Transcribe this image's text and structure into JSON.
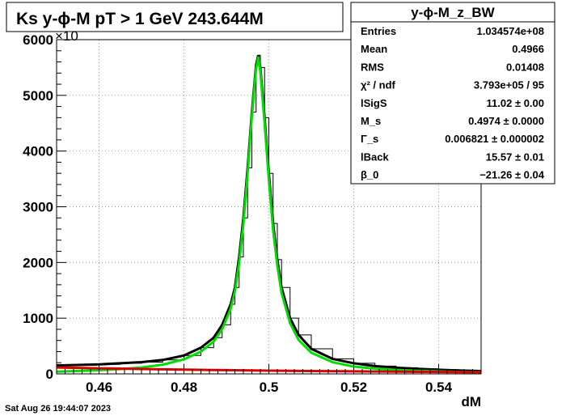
{
  "title": "Ks y-ϕ-M pT > 1 GeV  243.644M",
  "footer_date": "Sat Aug 26 19:44:07 2023",
  "stats_box": {
    "name": "y-ϕ-M_z_BW",
    "rows": [
      {
        "label": "Entries",
        "value": "1.034574e+08"
      },
      {
        "label": "Mean",
        "value": "0.4966"
      },
      {
        "label": "RMS",
        "value": "0.01408"
      },
      {
        "label": "χ² / ndf",
        "value": "3.793e+05 / 95"
      },
      {
        "label": "lSigS",
        "value": "11.02 ± 0.00"
      },
      {
        "label": "M_s",
        "value": "0.4974 ± 0.0000"
      },
      {
        "label": "Γ_s",
        "value": "0.006821 ± 0.000002"
      },
      {
        "label": "lBack",
        "value": "15.57 ± 0.01"
      },
      {
        "label": "β_0",
        "value": "−21.26 ± 0.04"
      }
    ]
  },
  "chart_data": {
    "type": "line",
    "title": "Ks y-ϕ-M pT > 1 GeV  243.644M",
    "xlabel": "dM",
    "ylabel": "",
    "y_multiplier_label": "×10",
    "xlim": [
      0.45,
      0.55
    ],
    "ylim": [
      0,
      6000
    ],
    "grid": true,
    "x_ticks": [
      0.46,
      0.48,
      0.5,
      0.52,
      0.54
    ],
    "x_tick_labels": [
      "0.46",
      "0.48",
      "0.5",
      "0.52",
      "0.54"
    ],
    "y_ticks": [
      0,
      1000,
      2000,
      3000,
      4000,
      5000,
      6000
    ],
    "y_tick_labels": [
      "0",
      "1000",
      "2000",
      "3000",
      "4000",
      "5000",
      "6000"
    ],
    "series": [
      {
        "role": "histogram",
        "color": "#000000",
        "x": [
          0.45,
          0.455,
          0.46,
          0.465,
          0.47,
          0.475,
          0.48,
          0.484,
          0.487,
          0.489,
          0.491,
          0.492,
          0.493,
          0.494,
          0.495,
          0.496,
          0.497,
          0.4975,
          0.498,
          0.499,
          0.5,
          0.501,
          0.502,
          0.503,
          0.505,
          0.507,
          0.51,
          0.515,
          0.52,
          0.525,
          0.53,
          0.535,
          0.54,
          0.545,
          0.55
        ],
        "y": [
          150,
          160,
          170,
          190,
          210,
          250,
          330,
          470,
          650,
          880,
          1250,
          1550,
          2100,
          2800,
          3700,
          4700,
          5550,
          5720,
          5500,
          4600,
          3600,
          2700,
          2050,
          1550,
          1000,
          700,
          450,
          270,
          190,
          140,
          110,
          90,
          75,
          60,
          50
        ]
      },
      {
        "role": "total fit",
        "color": "#00dd00",
        "x": [
          0.45,
          0.455,
          0.46,
          0.465,
          0.47,
          0.475,
          0.48,
          0.484,
          0.487,
          0.489,
          0.491,
          0.492,
          0.493,
          0.494,
          0.495,
          0.496,
          0.497,
          0.4975,
          0.498,
          0.499,
          0.5,
          0.501,
          0.502,
          0.503,
          0.505,
          0.507,
          0.51,
          0.515,
          0.52,
          0.525,
          0.53,
          0.535,
          0.54,
          0.545,
          0.55
        ],
        "y": [
          40,
          50,
          65,
          85,
          115,
          165,
          260,
          400,
          580,
          800,
          1170,
          1480,
          1990,
          2690,
          3600,
          4620,
          5480,
          5680,
          5430,
          4500,
          3480,
          2580,
          1940,
          1450,
          910,
          610,
          380,
          210,
          130,
          95,
          70,
          55,
          45,
          35,
          30
        ]
      },
      {
        "role": "background",
        "color": "#dd0000",
        "x": [
          0.45,
          0.46,
          0.47,
          0.48,
          0.49,
          0.5,
          0.51,
          0.52,
          0.53,
          0.54,
          0.55
        ],
        "y": [
          115,
          100,
          88,
          76,
          67,
          58,
          51,
          45,
          40,
          35,
          30
        ]
      }
    ]
  }
}
